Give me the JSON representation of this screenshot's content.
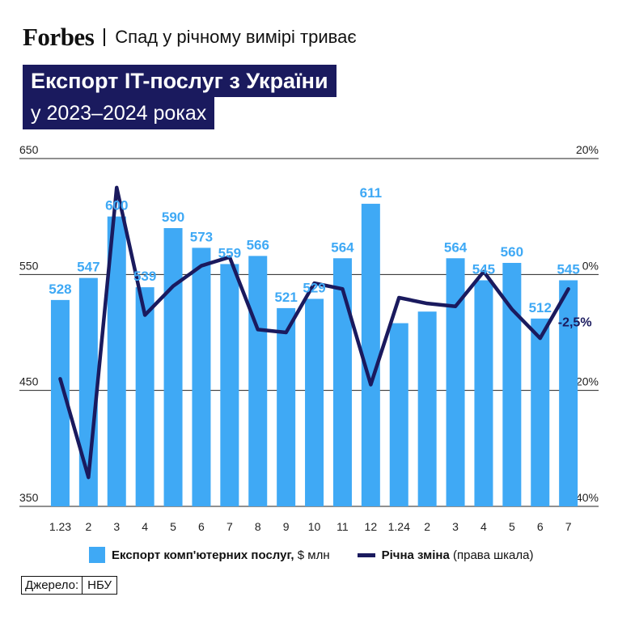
{
  "header": {
    "brand": "Forbes",
    "subtitle": "Спад у річному вимірі триває"
  },
  "title": {
    "line1": "Експорт IT-послуг з України",
    "line2": "у 2023–2024 роках"
  },
  "chart_data": {
    "type": "bar",
    "categories": [
      "1.23",
      "2",
      "3",
      "4",
      "5",
      "6",
      "7",
      "8",
      "9",
      "10",
      "11",
      "12",
      "1.24",
      "2",
      "3",
      "4",
      "5",
      "6",
      "7"
    ],
    "series": [
      {
        "name": "Експорт комп'ютерних послуг, $ млн",
        "type": "bar",
        "axis": "left",
        "color": "#3fa9f5",
        "values": [
          528,
          547,
          600,
          539,
          590,
          573,
          559,
          566,
          521,
          529,
          564,
          611,
          508,
          518,
          564,
          545,
          560,
          512,
          545
        ],
        "labels": [
          "528",
          "547",
          "600",
          "539",
          "590",
          "573",
          "559",
          "566",
          "521",
          "529",
          "564",
          "611",
          "",
          "",
          "564",
          "545",
          "560",
          "512",
          "545"
        ]
      },
      {
        "name": "Річна зміна",
        "type": "line",
        "axis": "right",
        "color": "#1a1a5e",
        "values": [
          -18,
          -35,
          15,
          -7,
          -2,
          1.5,
          3,
          -9.5,
          -10,
          -1.5,
          -2.5,
          -19,
          -4,
          -5,
          -5.5,
          0.5,
          -6,
          -11,
          -2.5
        ]
      }
    ],
    "bar_value_labels_shown": [
      "528",
      "547",
      "600",
      "539",
      "590",
      "573",
      "559",
      "566",
      "521",
      "529",
      "564",
      "611",
      "508",
      "518",
      "564",
      "545",
      "560",
      "512",
      "545"
    ],
    "line_annotation": "-2,5%",
    "left_axis": {
      "ylim": [
        350,
        650
      ],
      "ticks": [
        "350",
        "450",
        "550",
        "650"
      ]
    },
    "right_axis": {
      "ylim": [
        -40,
        20
      ],
      "ticks": [
        "-40%",
        "-20%",
        "0%",
        "20%"
      ]
    },
    "grid": true
  },
  "legend": {
    "bar_label": "Експорт комп'ютерних послуг,",
    "bar_unit": " $ млн",
    "line_label": "Річна зміна",
    "line_note": " (права шкала)"
  },
  "source": {
    "label": "Джерело:",
    "value": "НБУ"
  }
}
